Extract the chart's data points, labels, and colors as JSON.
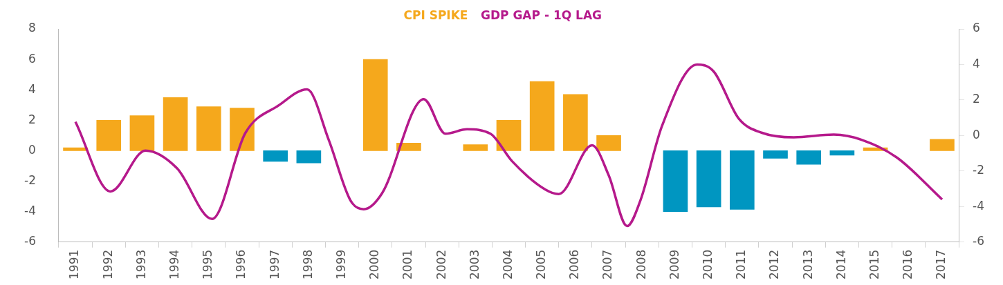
{
  "chart_data": {
    "type": "bar",
    "x": [
      1991,
      1992,
      1993,
      1994,
      1995,
      1996,
      1997,
      1998,
      1999,
      2000,
      2001,
      2002,
      2003,
      2004,
      2005,
      2006,
      2007,
      2008,
      2009,
      2010,
      2011,
      2012,
      2013,
      2014,
      2015,
      2016,
      2017
    ],
    "xlim": [
      1990.5,
      2017.5
    ],
    "xticks": [
      1991,
      1992,
      1993,
      1994,
      1995,
      1996,
      1997,
      1998,
      1999,
      2000,
      2001,
      2002,
      2003,
      2004,
      2005,
      2006,
      2007,
      2008,
      2009,
      2010,
      2011,
      2012,
      2013,
      2014,
      2015,
      2016,
      2017
    ],
    "series": [
      {
        "name": "CPI SPIKE",
        "color": "#f5a81c",
        "colors": [
          "#f5a81c",
          "#f5a81c",
          "#f5a81c",
          "#f5a81c",
          "#f5a81c",
          "#f5a81c",
          "#0096c1",
          "#0096c1",
          null,
          "#f5a81c",
          "#f5a81c",
          null,
          "#f5a81c",
          "#f5a81c",
          "#f5a81c",
          "#f5a81c",
          "#f5a81c",
          null,
          "#0096c1",
          "#0096c1",
          "#0096c1",
          "#0096c1",
          "#0096c1",
          "#0096c1",
          "#f5a81c",
          null,
          "#f5a81c"
        ],
        "values": [
          0.2,
          2.0,
          2.3,
          3.5,
          2.9,
          2.8,
          -0.7,
          -0.8,
          null,
          6.0,
          0.5,
          null,
          0.4,
          2.0,
          4.55,
          3.7,
          1.0,
          null,
          -4.0,
          -3.7,
          -3.85,
          -0.5,
          -0.9,
          -0.3,
          0.2,
          null,
          0.75
        ]
      },
      {
        "name": "GDP GAP - 1Q LAG",
        "type": "line",
        "axis": "y2",
        "color": "#b5198b",
        "x": [
          1991.0,
          1992.05,
          1993.1,
          1994.05,
          1995.1,
          1996.1,
          1997.1,
          1997.95,
          1998.6,
          1999.25,
          1999.65,
          2000.2,
          2001.45,
          2002.1,
          2002.75,
          2003.45,
          2004.1,
          2005.1,
          2005.5,
          2006.5,
          2007.0,
          2007.55,
          2007.95,
          2008.6,
          2009.65,
          2010.15,
          2010.9,
          2011.6,
          2012.55,
          2013.75,
          2014.6,
          2015.65,
          2017.0
        ],
        "values": [
          0.77,
          -3.15,
          -0.85,
          -1.85,
          -4.7,
          0.15,
          1.7,
          2.6,
          -0.25,
          -3.65,
          -4.15,
          -3.25,
          2.05,
          0.1,
          0.35,
          0.1,
          -1.45,
          -3.05,
          -3.3,
          -0.55,
          -2.25,
          -5.1,
          -3.65,
          0.55,
          4.0,
          3.6,
          0.95,
          0.15,
          -0.1,
          0.05,
          -0.25,
          -1.25,
          -3.6
        ]
      }
    ],
    "ylim": [
      -6,
      8
    ],
    "yticks": [
      -6,
      -4,
      -2,
      0,
      2,
      4,
      6,
      8
    ],
    "y2lim": [
      -6,
      6
    ],
    "y2ticks": [
      -6,
      -4,
      -2,
      0,
      2,
      4,
      6
    ],
    "grid": false,
    "legend": "top",
    "marker": "none",
    "line_style": "solid"
  }
}
